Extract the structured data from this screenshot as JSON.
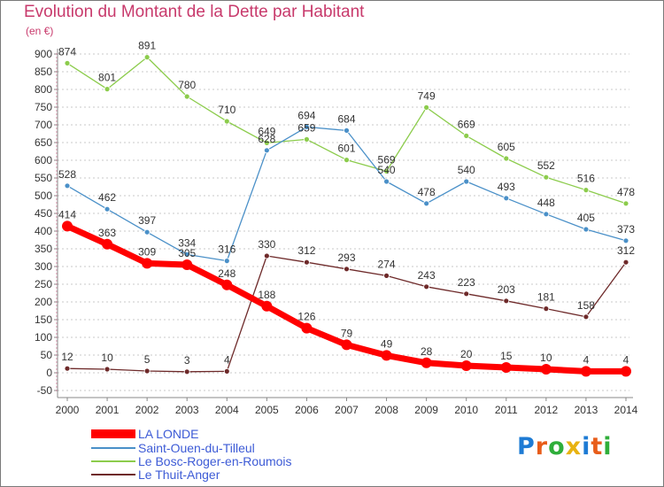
{
  "header": {
    "title": "Evolution du Montant de la Dette par Habitant",
    "unit": "(en €)"
  },
  "logo": {
    "text": "Proxiti",
    "colors": [
      "#1e7bd4",
      "#e85d1a",
      "#2fae3a",
      "#e8b312",
      "#1e7bd4",
      "#e85d1a",
      "#2fae3a"
    ]
  },
  "chart_data": {
    "type": "line",
    "title": "Evolution du Montant de la Dette par Habitant",
    "ylabel": "(en €)",
    "xlabel": "",
    "x": [
      "2000",
      "2001",
      "2002",
      "2003",
      "2004",
      "2005",
      "2006",
      "2007",
      "2008",
      "2009",
      "2010",
      "2011",
      "2012",
      "2013",
      "2014"
    ],
    "ylim": [
      -50,
      900
    ],
    "yticks": [
      "-50",
      "0",
      "50",
      "100",
      "150",
      "200",
      "250",
      "300",
      "350",
      "400",
      "450",
      "500",
      "550",
      "600",
      "650",
      "700",
      "750",
      "800",
      "850",
      "900"
    ],
    "grid": "horizontal-dotted",
    "legend": "bottom-left",
    "series": [
      {
        "name": "LA LONDE",
        "color": "#ff0000",
        "values": [
          414,
          363,
          309,
          305,
          248,
          188,
          126,
          79,
          49,
          28,
          20,
          15,
          10,
          4,
          4
        ],
        "labels": [
          "414",
          "363",
          "309",
          "305",
          "248",
          "188",
          "126",
          "79",
          "49",
          "28",
          "20",
          "15",
          "10",
          "4",
          "4"
        ]
      },
      {
        "name": "Saint-Ouen-du-Tilleul",
        "color": "#4a90c8",
        "values": [
          528,
          462,
          397,
          334,
          316,
          628,
          694,
          684,
          540,
          478,
          540,
          493,
          448,
          405,
          373
        ],
        "labels": [
          "528",
          "462",
          "397",
          "334",
          "316",
          "628",
          "694",
          "684",
          "540",
          "478",
          "540",
          "493",
          "448",
          "405",
          "373"
        ]
      },
      {
        "name": "Le Bosc-Roger-en-Roumois",
        "color": "#8ccc4c",
        "values": [
          874,
          801,
          891,
          780,
          710,
          649,
          659,
          601,
          569,
          749,
          669,
          605,
          552,
          516,
          478
        ],
        "labels": [
          "874",
          "801",
          "891",
          "780",
          "710",
          "649",
          "659",
          "601",
          "569",
          "749",
          "669",
          "605",
          "552",
          "516",
          "478"
        ]
      },
      {
        "name": "Le Thuit-Anger",
        "color": "#6e2a2a",
        "values": [
          12,
          10,
          5,
          3,
          4,
          330,
          312,
          293,
          274,
          243,
          223,
          203,
          181,
          158,
          312
        ],
        "labels": [
          "12",
          "10",
          "5",
          "3",
          "4",
          "330",
          "312",
          "293",
          "274",
          "243",
          "223",
          "203",
          "181",
          "158",
          "312"
        ]
      }
    ]
  }
}
